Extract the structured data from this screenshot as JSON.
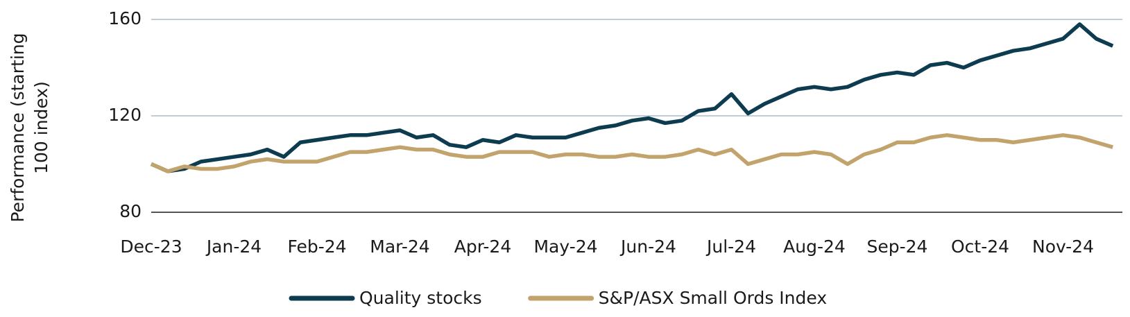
{
  "chart_data": {
    "type": "line",
    "y_label": "Performance (starting 100 index)",
    "categories": [
      "Dec-23",
      null,
      null,
      null,
      null,
      "Jan-24",
      null,
      null,
      null,
      null,
      "Feb-24",
      null,
      null,
      null,
      null,
      "Mar-24",
      null,
      null,
      null,
      null,
      "Apr-24",
      null,
      null,
      null,
      null,
      "May-24",
      null,
      null,
      null,
      null,
      "Jun-24",
      null,
      null,
      null,
      null,
      "Jul-24",
      null,
      null,
      null,
      null,
      "Aug-24",
      null,
      null,
      null,
      null,
      "Sep-24",
      null,
      null,
      null,
      null,
      "Oct-24",
      null,
      null,
      null,
      null,
      "Nov-24",
      null,
      null,
      null
    ],
    "series": [
      {
        "name": "Quality stocks",
        "color": "#0d3b4f",
        "values": [
          100,
          97,
          98,
          101,
          102,
          103,
          104,
          106,
          103,
          109,
          110,
          111,
          112,
          112,
          113,
          114,
          111,
          112,
          108,
          107,
          110,
          109,
          112,
          111,
          111,
          111,
          113,
          115,
          116,
          118,
          119,
          117,
          118,
          122,
          123,
          129,
          121,
          125,
          128,
          131,
          132,
          131,
          132,
          135,
          137,
          138,
          137,
          141,
          142,
          140,
          143,
          145,
          147,
          148,
          150,
          152,
          158,
          152,
          149
        ]
      },
      {
        "name": "S&P/ASX Small Ords Index",
        "color": "#c2a36b",
        "values": [
          100,
          97,
          99,
          98,
          98,
          99,
          101,
          102,
          101,
          101,
          101,
          103,
          105,
          105,
          106,
          107,
          106,
          106,
          104,
          103,
          103,
          105,
          105,
          105,
          103,
          104,
          104,
          103,
          103,
          104,
          103,
          103,
          104,
          106,
          104,
          106,
          100,
          102,
          104,
          104,
          105,
          104,
          100,
          104,
          106,
          109,
          109,
          111,
          112,
          111,
          110,
          110,
          109,
          110,
          111,
          112,
          111,
          109,
          107
        ]
      }
    ],
    "ylim": [
      80,
      160
    ],
    "yticks": [
      80,
      120,
      160
    ],
    "grid": true
  }
}
